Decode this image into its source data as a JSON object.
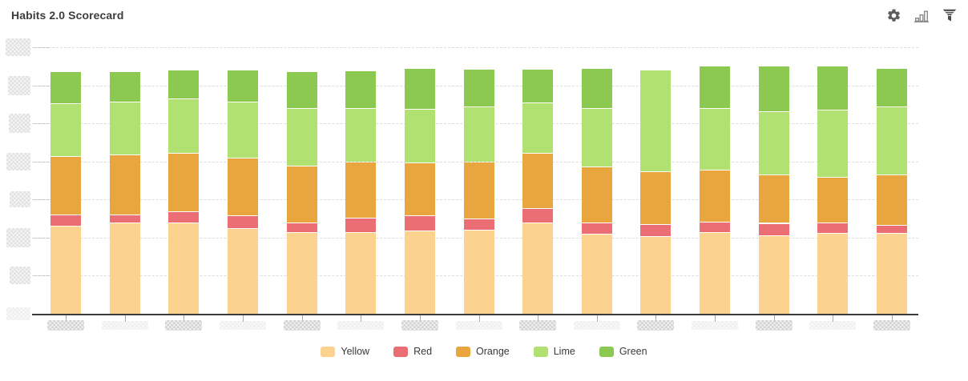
{
  "header": {
    "title": "Habits 2.0 Scorecard",
    "toolbar_icons": [
      "gear-icon",
      "bar-chart-icon",
      "filter-icon"
    ]
  },
  "colors": {
    "yellow": "#FBD28E",
    "red": "#EB6E74",
    "orange": "#E9A63E",
    "lime": "#B1E170",
    "green": "#8CC951",
    "baseline": "#3a3a3a",
    "gridline": "#dcdcdc",
    "title_text": "#3d3d3d",
    "legend_text": "#3a3a3a",
    "icon_gray": "#5c5c5c",
    "redaction_gray": "#c7c7c7"
  },
  "chart_data": {
    "type": "bar",
    "stacked": true,
    "title": "Habits 2.0 Scorecard",
    "num_bars": 15,
    "categories": [
      "",
      "",
      "",
      "",
      "",
      "",
      "",
      "",
      "",
      "",
      "",
      "",
      "",
      "",
      ""
    ],
    "categories_redacted": true,
    "value_units": "percent of y-axis height (axis tick labels are pixelated/redacted in source image)",
    "ylim": [
      0,
      100
    ],
    "y_ticks": {
      "count": 8,
      "labels_redacted": true
    },
    "x_ticks": {
      "count": 15,
      "labels_redacted": true,
      "darker_label_on_odd_bars": true
    },
    "grid": "horizontal-dashed",
    "legend_position": "bottom-center",
    "series": [
      {
        "name": "Yellow",
        "color": "#FBD28E",
        "values": [
          32.8,
          34.0,
          34.2,
          32.0,
          30.5,
          30.7,
          31.2,
          31.5,
          34.2,
          30.0,
          29.2,
          30.5,
          29.5,
          30.2,
          30.3
        ]
      },
      {
        "name": "Red",
        "color": "#EB6E74",
        "values": [
          4.2,
          3.2,
          4.1,
          4.7,
          3.7,
          5.3,
          5.5,
          4.0,
          5.3,
          4.0,
          4.3,
          4.0,
          4.5,
          3.8,
          2.9
        ]
      },
      {
        "name": "Orange",
        "color": "#E9A63E",
        "values": [
          22.0,
          22.3,
          21.9,
          21.8,
          21.3,
          20.8,
          19.8,
          21.5,
          20.7,
          21.2,
          19.7,
          19.5,
          18.0,
          17.2,
          18.8
        ]
      },
      {
        "name": "Lime",
        "color": "#B1E170",
        "values": [
          19.8,
          19.8,
          20.3,
          20.8,
          21.5,
          20.1,
          20.1,
          20.6,
          18.9,
          21.8,
          38.2,
          23.0,
          23.7,
          25.1,
          25.6
        ]
      },
      {
        "name": "Green",
        "color": "#8CC951",
        "values": [
          12.0,
          11.5,
          10.8,
          12.0,
          13.8,
          14.2,
          15.3,
          14.0,
          12.5,
          14.9,
          0,
          15.8,
          17.1,
          16.5,
          14.3
        ]
      }
    ]
  },
  "legend": {
    "items": [
      {
        "label": "Yellow",
        "color": "#FBD28E"
      },
      {
        "label": "Red",
        "color": "#EB6E74"
      },
      {
        "label": "Orange",
        "color": "#E9A63E"
      },
      {
        "label": "Lime",
        "color": "#B1E170"
      },
      {
        "label": "Green",
        "color": "#8CC951"
      }
    ]
  }
}
